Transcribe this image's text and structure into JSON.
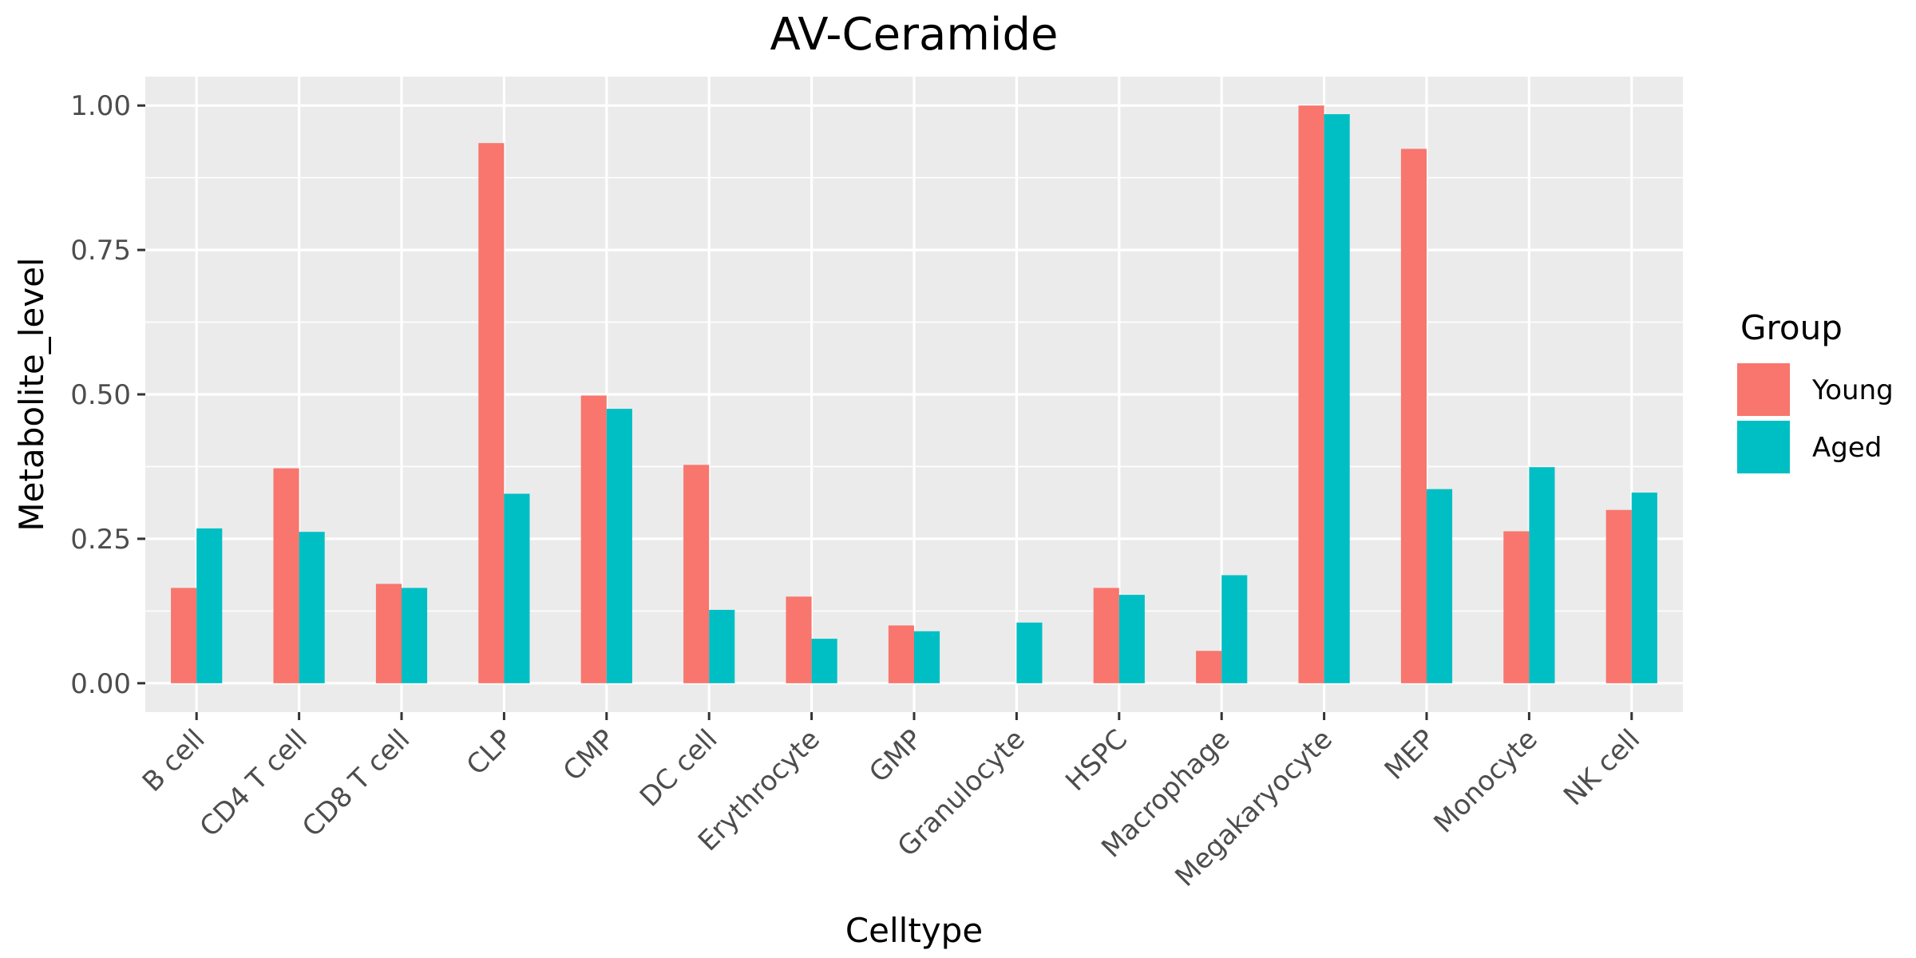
{
  "chart_data": {
    "type": "bar",
    "title": "AV-Ceramide",
    "xlabel": "Celltype",
    "ylabel": "Metabolite_level",
    "categories": [
      "B cell",
      "CD4 T cell",
      "CD8 T cell",
      "CLP",
      "CMP",
      "DC cell",
      "Erythrocyte",
      "GMP",
      "Granulocyte",
      "HSPC",
      "Macrophage",
      "Megakaryocyte",
      "MEP",
      "Monocyte",
      "NK cell"
    ],
    "series": [
      {
        "name": "Young",
        "color": "#F8766D",
        "values": [
          0.165,
          0.372,
          0.172,
          0.935,
          0.498,
          0.378,
          0.15,
          0.1,
          null,
          0.165,
          0.056,
          1.0,
          0.925,
          0.263,
          0.3
        ]
      },
      {
        "name": "Aged",
        "color": "#00BFC4",
        "values": [
          0.268,
          0.262,
          0.165,
          0.328,
          0.475,
          0.127,
          0.077,
          0.09,
          0.105,
          0.153,
          0.187,
          0.985,
          0.336,
          0.374,
          0.33
        ]
      }
    ],
    "ylim": [
      -0.05,
      1.05
    ],
    "yticks": [
      0.0,
      0.25,
      0.5,
      0.75,
      1.0
    ],
    "yticklabels": [
      "0.00",
      "0.25",
      "0.50",
      "0.75",
      "1.00"
    ],
    "grid": true,
    "legend": {
      "title": "Group",
      "position": "right"
    }
  }
}
